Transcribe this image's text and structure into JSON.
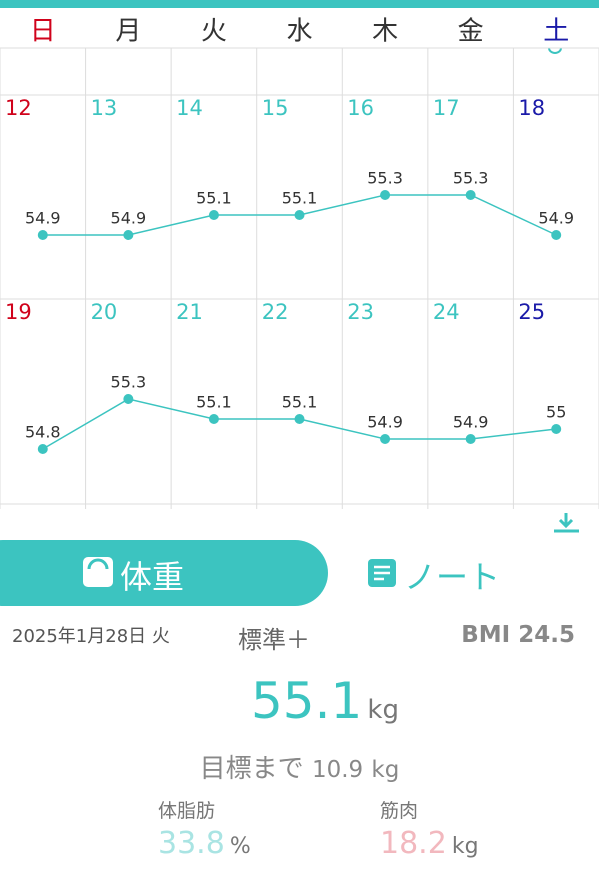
{
  "weekdays": [
    "日",
    "月",
    "火",
    "水",
    "木",
    "金",
    "土"
  ],
  "weeks": [
    {
      "days": [
        12,
        13,
        14,
        15,
        16,
        17,
        18
      ],
      "weights": [
        54.9,
        54.9,
        55.1,
        55.1,
        55.3,
        55.3,
        54.9
      ]
    },
    {
      "days": [
        19,
        20,
        21,
        22,
        23,
        24,
        25
      ],
      "weights": [
        54.8,
        55.3,
        55.1,
        55.1,
        54.9,
        54.9,
        55.0
      ]
    }
  ],
  "tabs": [
    "体重",
    "ノート"
  ],
  "summary": {
    "date": "2025年1月28日 火",
    "status": "標準＋",
    "bmi_label": "BMI",
    "bmi": 24.5,
    "weight": 55.1,
    "weight_unit": "kg",
    "goal_label": "目標まで",
    "goal_remaining": 10.9,
    "goal_unit": "kg",
    "body_fat_label": "体脂肪",
    "body_fat": 33.8,
    "body_fat_unit": "%",
    "muscle_label": "筋肉",
    "muscle": 18.2,
    "muscle_unit": "kg"
  }
}
